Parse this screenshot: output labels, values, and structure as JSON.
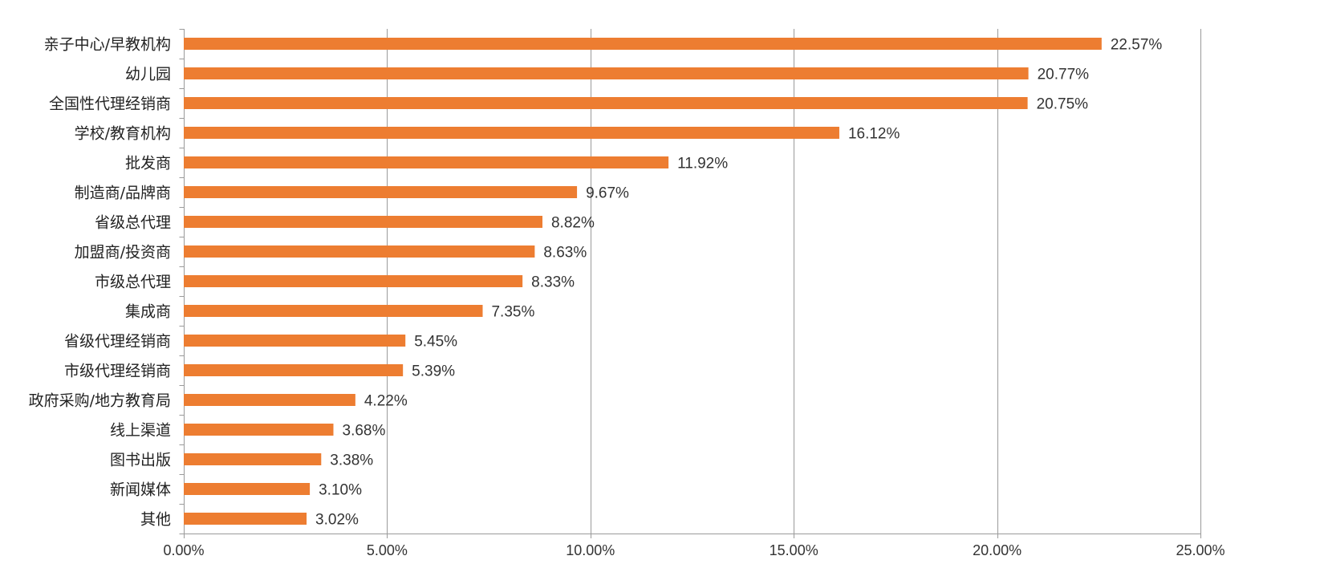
{
  "chart_data": {
    "type": "bar",
    "orientation": "horizontal",
    "categories": [
      "亲子中心/早教机构",
      "幼儿园",
      "全国性代理经销商",
      "学校/教育机构",
      "批发商",
      "制造商/品牌商",
      "省级总代理",
      "加盟商/投资商",
      "市级总代理",
      "集成商",
      "省级代理经销商",
      "市级代理经销商",
      "政府采购/地方教育局",
      "线上渠道",
      "图书出版",
      "新闻媒体",
      "其他"
    ],
    "values": [
      22.57,
      20.77,
      20.75,
      16.12,
      11.92,
      9.67,
      8.82,
      8.63,
      8.33,
      7.35,
      5.45,
      5.39,
      4.22,
      3.68,
      3.38,
      3.1,
      3.02
    ],
    "value_labels": [
      "22.57%",
      "20.77%",
      "20.75%",
      "16.12%",
      "11.92%",
      "9.67%",
      "8.82%",
      "8.63%",
      "8.33%",
      "7.35%",
      "5.45%",
      "5.39%",
      "4.22%",
      "3.68%",
      "3.38%",
      "3.10%",
      "3.02%"
    ],
    "xticks": [
      0,
      5,
      10,
      15,
      20,
      25
    ],
    "xtick_labels": [
      "0.00%",
      "5.00%",
      "10.00%",
      "15.00%",
      "20.00%",
      "25.00%"
    ],
    "xlim": [
      0,
      25
    ],
    "title": "",
    "xlabel": "",
    "ylabel": "",
    "grid": "vertical",
    "legend": "none",
    "bar_color": "#ED7D31",
    "grid_color": "#9A9A9A"
  }
}
